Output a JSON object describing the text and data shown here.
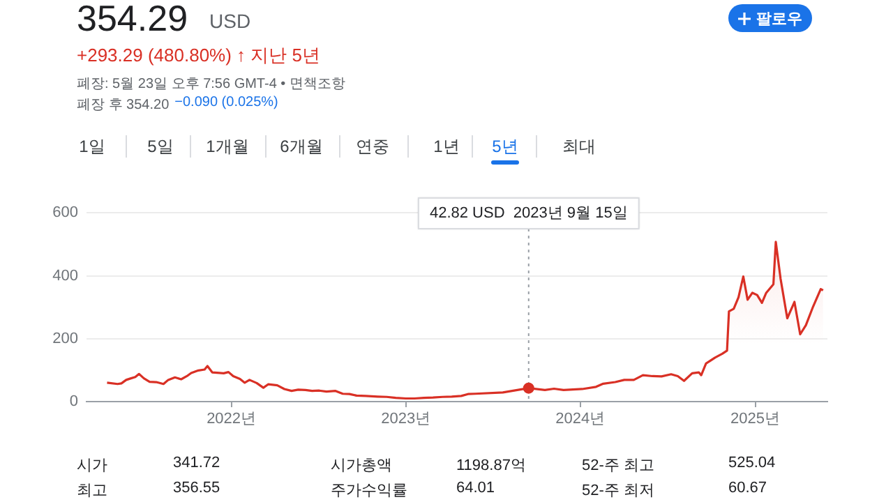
{
  "chart_data": {
    "type": "area",
    "title": "354.29",
    "subtitle": "+293.29 (480.80%) ↑ 지난 5년",
    "x": [
      "2021-04-16",
      "2021-05-08",
      "2021-05-16",
      "2021-05-26",
      "2021-06-05",
      "2021-06-14",
      "2021-06-22",
      "2021-07-02",
      "2021-07-14",
      "2021-07-28",
      "2021-08-12",
      "2021-08-22",
      "2021-09-05",
      "2021-09-18",
      "2021-09-30",
      "2021-10-09",
      "2021-10-24",
      "2021-11-06",
      "2021-11-12",
      "2021-11-22",
      "2021-12-07",
      "2021-12-16",
      "2021-12-26",
      "2022-01-05",
      "2022-01-19",
      "2022-01-29",
      "2022-02-08",
      "2022-02-23",
      "2022-03-09",
      "2022-03-19",
      "2022-04-07",
      "2022-04-22",
      "2022-05-07",
      "2022-05-21",
      "2022-06-05",
      "2022-06-19",
      "2022-07-04",
      "2022-07-19",
      "2022-08-07",
      "2022-08-22",
      "2022-09-05",
      "2022-09-20",
      "2022-10-09",
      "2022-11-03",
      "2022-11-22",
      "2022-12-11",
      "2023-01-01",
      "2023-01-19",
      "2023-02-08",
      "2023-02-27",
      "2023-03-19",
      "2023-04-07",
      "2023-04-27",
      "2023-05-11",
      "2023-05-26",
      "2023-07-23",
      "2023-09-15",
      "2023-10-19",
      "2023-11-07",
      "2023-11-27",
      "2024-01-05",
      "2024-02-03",
      "2024-02-18",
      "2024-03-14",
      "2024-04-02",
      "2024-04-22",
      "2024-05-11",
      "2024-05-31",
      "2024-06-19",
      "2024-07-09",
      "2024-07-23",
      "2024-08-05",
      "2024-08-22",
      "2024-09-05",
      "2024-09-10",
      "2024-09-20",
      "2024-10-09",
      "2024-10-24",
      "2024-11-03",
      "2024-11-07",
      "2024-11-17",
      "2024-11-27",
      "2024-12-07",
      "2024-12-16",
      "2024-12-26",
      "2025-01-05",
      "2025-01-15",
      "2025-01-24",
      "2025-02-08",
      "2025-02-13",
      "2025-02-23",
      "2025-03-09",
      "2025-03-24",
      "2025-04-05",
      "2025-04-17",
      "2025-05-02",
      "2025-05-18",
      "2025-05-23"
    ],
    "series": [
      {
        "color": "#d93025",
        "values": [
          60,
          56,
          58,
          69,
          74,
          78,
          88,
          74,
          63,
          62,
          56,
          69,
          77,
          71,
          81,
          91,
          99,
          102,
          113,
          93,
          91,
          90,
          94,
          81,
          72,
          60,
          69,
          59,
          44,
          55,
          52,
          40,
          34,
          38,
          37,
          34,
          35,
          32,
          34,
          25,
          24,
          19,
          18,
          16,
          15,
          12,
          10,
          10,
          12,
          13,
          15,
          16,
          18,
          24,
          25,
          29,
          42.82,
          37,
          41,
          37,
          40,
          47,
          57,
          62,
          69,
          69,
          84,
          81,
          80,
          87,
          81,
          66,
          90,
          93,
          84,
          121,
          140,
          152,
          162,
          287,
          295,
          332,
          398,
          324,
          346,
          339,
          314,
          346,
          373,
          508,
          391,
          265,
          317,
          214,
          243,
          302,
          358,
          354
        ]
      }
    ],
    "xlim": [
      "2021-03-04",
      "2025-06-01"
    ],
    "xticks": [
      {
        "value": "2022-01-01",
        "label": "2022년"
      },
      {
        "value": "2023-01-01",
        "label": "2023년"
      },
      {
        "value": "2024-01-01",
        "label": "2024년"
      },
      {
        "value": "2025-01-01",
        "label": "2025년"
      }
    ],
    "ylim": [
      0,
      600
    ],
    "yticks": [
      0,
      200,
      400,
      600
    ],
    "grid": "y",
    "marker": "none",
    "ref_lines": [
      {
        "axis": "x",
        "value": "2023-09-15",
        "color": "#9aa0a6",
        "line_style": "dotted",
        "label": "42.82 USD  2023년 9월 15일"
      }
    ],
    "annotations": [
      "USD",
      "폐장: 5월 23일 오후 7:56 GMT-4 • 면책조항",
      "폐장 후 354.20",
      "−0.090 (0.025%)",
      "팔로우",
      "1일",
      "5일",
      "1개월",
      "6개월",
      "연중",
      "1년",
      "5년",
      "최대",
      "시가",
      "341.72",
      "시가총액",
      "1198.87억",
      "52-주 최고",
      "525.04",
      "최고",
      "356.55",
      "주가수익률",
      "64.01",
      "52-주 최저",
      "60.67"
    ]
  }
}
